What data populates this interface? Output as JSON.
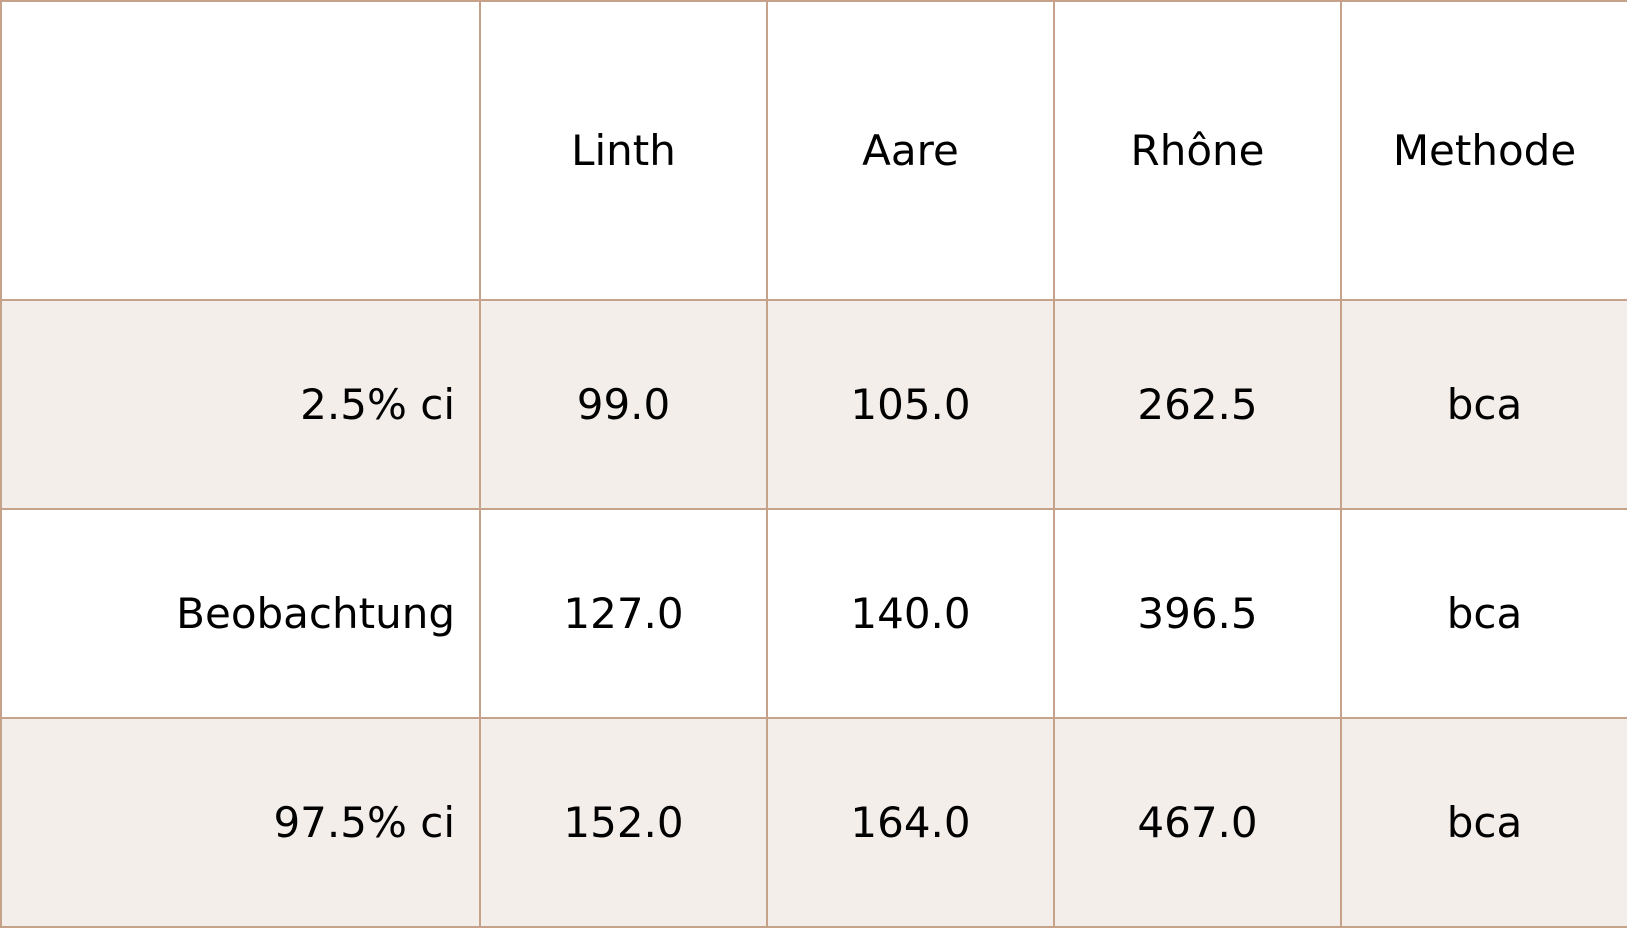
{
  "table": {
    "header_cells": [
      "",
      "Linth",
      "Aare",
      "Rhône",
      "Methode"
    ],
    "rows": [
      {
        "label": "2.5% ci",
        "cells": [
          "99.0",
          "105.0",
          "262.5",
          "bca"
        ]
      },
      {
        "label": "Beobachtung",
        "cells": [
          "127.0",
          "140.0",
          "396.5",
          "bca"
        ]
      },
      {
        "label": "97.5% ci",
        "cells": [
          "152.0",
          "164.0",
          "467.0",
          "bca"
        ]
      }
    ]
  },
  "colors": {
    "border": "#c7a28b",
    "shaded_row": "#f4eeeb",
    "plain_row": "#ffffff",
    "text": "#000000"
  },
  "chart_data": {
    "type": "table",
    "columns": [
      "",
      "Linth",
      "Aare",
      "Rhône",
      "Methode"
    ],
    "rows": [
      [
        "2.5% ci",
        99.0,
        105.0,
        262.5,
        "bca"
      ],
      [
        "Beobachtung",
        127.0,
        140.0,
        396.5,
        "bca"
      ],
      [
        "97.5% ci",
        152.0,
        164.0,
        467.0,
        "bca"
      ]
    ]
  }
}
